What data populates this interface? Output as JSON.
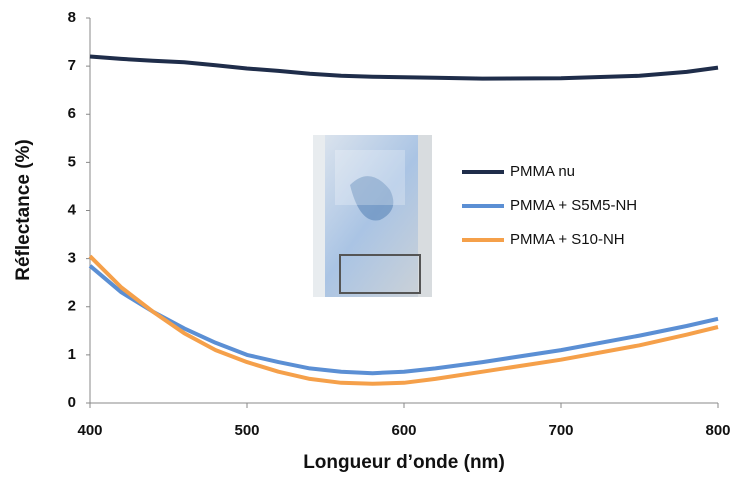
{
  "chart_data": {
    "type": "line",
    "x_label": "Longueur d’onde (nm)",
    "y_label": "Réflectance (%)",
    "x": [
      400,
      420,
      440,
      460,
      480,
      500,
      520,
      540,
      560,
      580,
      600,
      620,
      650,
      700,
      750,
      780,
      800
    ],
    "series": [
      {
        "name": "PMMA nu",
        "color": "#1f2d4a",
        "values": [
          7.2,
          7.15,
          7.11,
          7.08,
          7.02,
          6.95,
          6.9,
          6.84,
          6.8,
          6.78,
          6.77,
          6.76,
          6.74,
          6.75,
          6.8,
          6.88,
          6.97
        ]
      },
      {
        "name": "PMMA + S5M5-NH",
        "color": "#5b8fd4",
        "values": [
          2.85,
          2.3,
          1.9,
          1.55,
          1.25,
          1.0,
          0.85,
          0.72,
          0.65,
          0.62,
          0.65,
          0.72,
          0.85,
          1.1,
          1.4,
          1.6,
          1.75
        ]
      },
      {
        "name": "PMMA + S10-NH",
        "color": "#f5a04a",
        "values": [
          3.05,
          2.4,
          1.9,
          1.45,
          1.1,
          0.85,
          0.65,
          0.5,
          0.42,
          0.4,
          0.42,
          0.5,
          0.65,
          0.9,
          1.2,
          1.42,
          1.58
        ]
      }
    ],
    "xlim": [
      400,
      800
    ],
    "xticks": [
      400,
      500,
      600,
      700,
      800
    ],
    "ylim": [
      0,
      8
    ],
    "yticks": [
      0,
      1,
      2,
      3,
      4,
      5,
      6,
      7,
      8
    ],
    "grid": false,
    "legend": "right"
  }
}
